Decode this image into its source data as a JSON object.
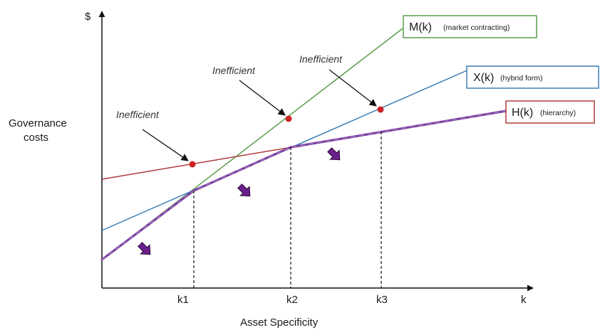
{
  "y_axis_symbol": "$",
  "y_axis_title_lines": [
    "Governance",
    "costs"
  ],
  "x_axis_title": "Asset Specificity",
  "x_ticks": [
    "k1",
    "k2",
    "k3",
    "k"
  ],
  "inefficient_labels": [
    "Inefficient",
    "Inefficient",
    "Inefficient"
  ],
  "curves": {
    "market": {
      "label_main": "M(k)",
      "label_sub": "(market contracting)",
      "color": "#5a9e4b"
    },
    "hybrid": {
      "label_main": "X(k)",
      "label_sub": "(hybrid form)",
      "color": "#3d7fb5"
    },
    "hierarchy": {
      "label_main": "H(k)",
      "label_sub": "(hierarchy)",
      "color": "#b03a3a"
    }
  },
  "envelope_color": "#7a3fa0",
  "point_color": "#cc2222",
  "arrow_color": "#6a1f8a"
}
